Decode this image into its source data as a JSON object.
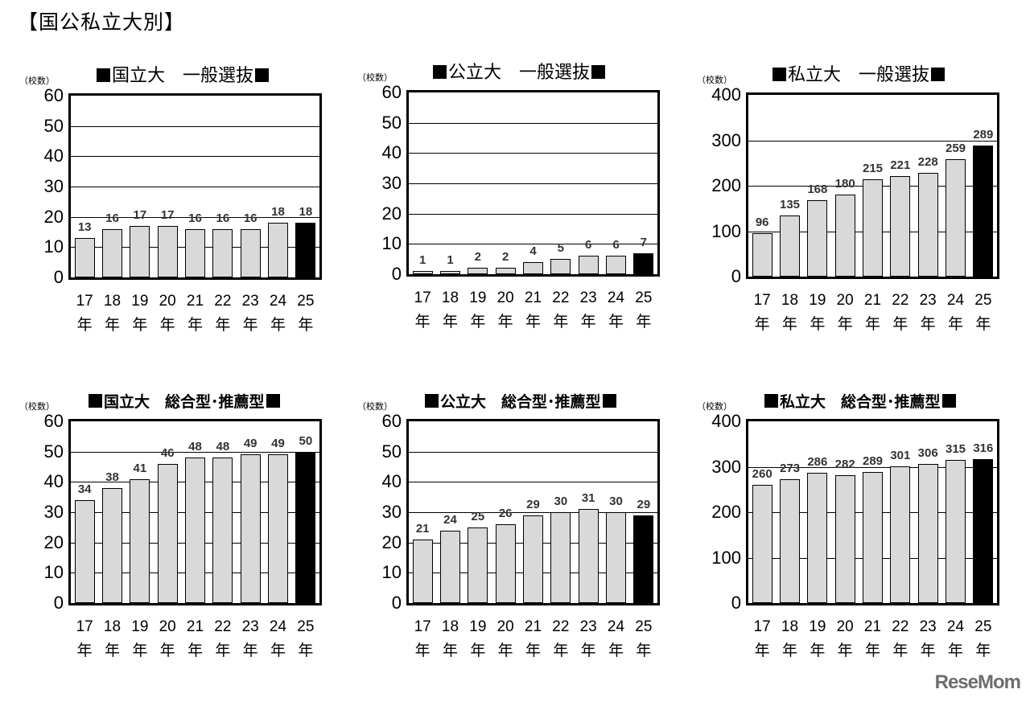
{
  "page": {
    "title": "【国公私立大別】",
    "logo": "ReseMom"
  },
  "chart_data": [
    {
      "id": "national-general",
      "type": "bar",
      "title": "国立大　一般選抜",
      "ylabel": "（校数）",
      "xlabel": "",
      "categories": [
        "17年",
        "18年",
        "19年",
        "20年",
        "21年",
        "22年",
        "23年",
        "24年",
        "25年"
      ],
      "values": [
        13,
        16,
        17,
        17,
        16,
        16,
        16,
        18,
        18
      ],
      "highlight_index": 8,
      "ylim": [
        0,
        60
      ],
      "yticks": [
        0,
        10,
        20,
        30,
        40,
        50,
        60
      ],
      "grid": true,
      "legend": "none"
    },
    {
      "id": "public-general",
      "type": "bar",
      "title": "公立大　一般選抜",
      "ylabel": "（校数）",
      "xlabel": "",
      "categories": [
        "17年",
        "18年",
        "19年",
        "20年",
        "21年",
        "22年",
        "23年",
        "24年",
        "25年"
      ],
      "values": [
        1,
        1,
        2,
        2,
        4,
        5,
        6,
        6,
        7
      ],
      "highlight_index": 8,
      "ylim": [
        0,
        60
      ],
      "yticks": [
        0,
        10,
        20,
        30,
        40,
        50,
        60
      ],
      "grid": true,
      "legend": "none"
    },
    {
      "id": "private-general",
      "type": "bar",
      "title": "私立大　一般選抜",
      "ylabel": "（校数）",
      "xlabel": "",
      "categories": [
        "17年",
        "18年",
        "19年",
        "20年",
        "21年",
        "22年",
        "23年",
        "24年",
        "25年"
      ],
      "values": [
        96,
        135,
        168,
        180,
        215,
        221,
        228,
        259,
        289
      ],
      "highlight_index": 8,
      "ylim": [
        0,
        400
      ],
      "yticks": [
        0,
        100,
        200,
        300,
        400
      ],
      "grid": true,
      "legend": "none"
    },
    {
      "id": "national-comprehensive",
      "type": "bar",
      "title": "国立大　総合型･推薦型",
      "ylabel": "（校数）",
      "xlabel": "",
      "categories": [
        "17年",
        "18年",
        "19年",
        "20年",
        "21年",
        "22年",
        "23年",
        "24年",
        "25年"
      ],
      "values": [
        34,
        38,
        41,
        46,
        48,
        48,
        49,
        49,
        50
      ],
      "highlight_index": 8,
      "ylim": [
        0,
        60
      ],
      "yticks": [
        0,
        10,
        20,
        30,
        40,
        50,
        60
      ],
      "grid": true,
      "legend": "none"
    },
    {
      "id": "public-comprehensive",
      "type": "bar",
      "title": "公立大　総合型･推薦型",
      "ylabel": "（校数）",
      "xlabel": "",
      "categories": [
        "17年",
        "18年",
        "19年",
        "20年",
        "21年",
        "22年",
        "23年",
        "24年",
        "25年"
      ],
      "values": [
        21,
        24,
        25,
        26,
        29,
        30,
        31,
        30,
        29
      ],
      "highlight_index": 8,
      "ylim": [
        0,
        60
      ],
      "yticks": [
        0,
        10,
        20,
        30,
        40,
        50,
        60
      ],
      "grid": true,
      "legend": "none"
    },
    {
      "id": "private-comprehensive",
      "type": "bar",
      "title": "私立大　総合型･推薦型",
      "ylabel": "（校数）",
      "xlabel": "",
      "categories": [
        "17年",
        "18年",
        "19年",
        "20年",
        "21年",
        "22年",
        "23年",
        "24年",
        "25年"
      ],
      "values": [
        260,
        273,
        286,
        282,
        289,
        301,
        306,
        315,
        316
      ],
      "highlight_index": 8,
      "ylim": [
        0,
        400
      ],
      "yticks": [
        0,
        100,
        200,
        300,
        400
      ],
      "grid": true,
      "legend": "none"
    }
  ],
  "colors": {
    "bar": "#d9d9d9",
    "highlight_bar": "#000000",
    "value_label": "#333333",
    "logo": "#6e6e6e"
  }
}
